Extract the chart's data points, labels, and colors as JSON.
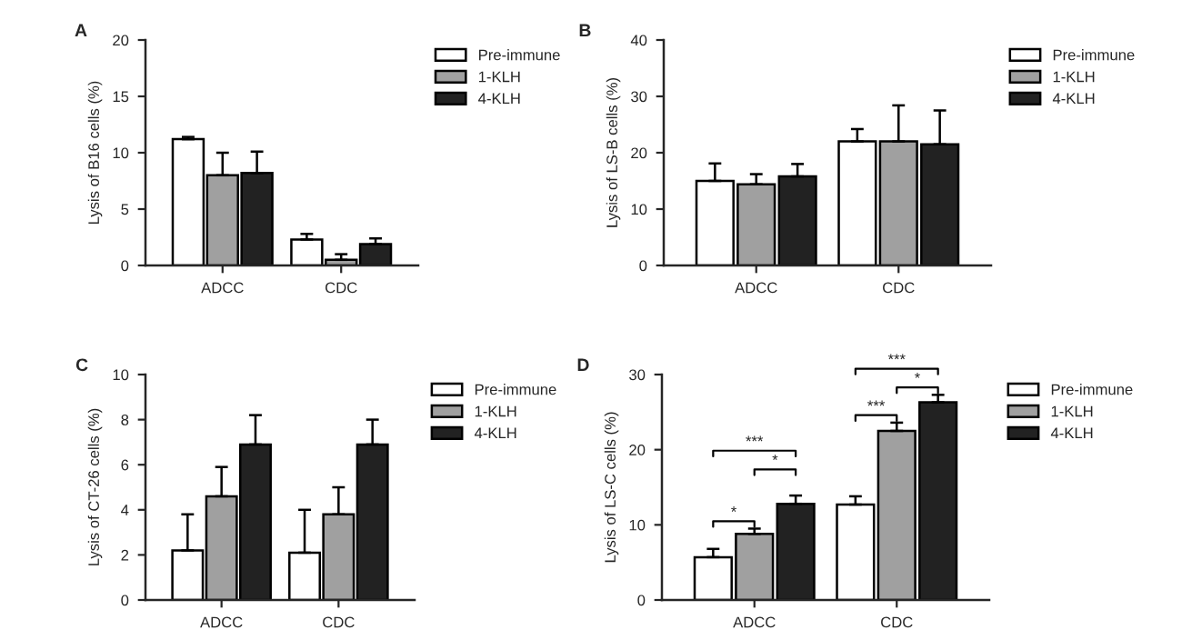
{
  "chart_data": [
    {
      "type": "bar",
      "ylabel": "Lysis of B16 cells (%)",
      "categories": [
        "ADCC",
        "CDC"
      ],
      "ylim": [
        0,
        20
      ],
      "yticks": [
        0,
        5,
        10,
        15,
        20
      ],
      "legend": "right",
      "grid": false,
      "annotations": [
        "A"
      ],
      "series": [
        {
          "name": "Pre-immune",
          "color": "#ffffff",
          "values": [
            11.2,
            2.3
          ],
          "errors": [
            [
              11.2,
              11.4
            ],
            [
              2.3,
              2.8
            ]
          ]
        },
        {
          "name": "1-KLH",
          "color": "#a0a0a0",
          "values": [
            8.0,
            0.5
          ],
          "errors": [
            [
              8.0,
              10.0
            ],
            [
              0.5,
              1.0
            ]
          ]
        },
        {
          "name": "4-KLH",
          "color": "#222222",
          "values": [
            8.2,
            1.9
          ],
          "errors": [
            [
              8.2,
              10.1
            ],
            [
              1.9,
              2.4
            ]
          ]
        }
      ]
    },
    {
      "type": "bar",
      "ylabel": "Lysis of LS-B cells (%)",
      "categories": [
        "ADCC",
        "CDC"
      ],
      "ylim": [
        0,
        40
      ],
      "yticks": [
        0,
        10,
        20,
        30,
        40
      ],
      "legend": "right",
      "grid": false,
      "annotations": [
        "B"
      ],
      "series": [
        {
          "name": "Pre-immune",
          "color": "#ffffff",
          "values": [
            15.0,
            22.0
          ],
          "errors": [
            [
              15.0,
              18.1
            ],
            [
              22.0,
              24.2
            ]
          ]
        },
        {
          "name": "1-KLH",
          "color": "#a0a0a0",
          "values": [
            14.4,
            22.0
          ],
          "errors": [
            [
              14.4,
              16.2
            ],
            [
              22.0,
              28.4
            ]
          ]
        },
        {
          "name": "4-KLH",
          "color": "#222222",
          "values": [
            15.8,
            21.5
          ],
          "errors": [
            [
              15.8,
              18.0
            ],
            [
              21.5,
              27.5
            ]
          ]
        }
      ]
    },
    {
      "type": "bar",
      "ylabel": "Lysis of CT-26 cells (%)",
      "categories": [
        "ADCC",
        "CDC"
      ],
      "ylim": [
        0,
        10
      ],
      "yticks": [
        0,
        2,
        4,
        6,
        8,
        10
      ],
      "legend": "right",
      "grid": false,
      "annotations": [
        "C"
      ],
      "series": [
        {
          "name": "Pre-immune",
          "color": "#ffffff",
          "values": [
            2.2,
            2.1
          ],
          "errors": [
            [
              2.2,
              3.8
            ],
            [
              2.1,
              4.0
            ]
          ]
        },
        {
          "name": "1-KLH",
          "color": "#a0a0a0",
          "values": [
            4.6,
            3.8
          ],
          "errors": [
            [
              4.6,
              5.9
            ],
            [
              3.8,
              5.0
            ]
          ]
        },
        {
          "name": "4-KLH",
          "color": "#222222",
          "values": [
            6.9,
            6.9
          ],
          "errors": [
            [
              6.9,
              8.2
            ],
            [
              6.9,
              8.0
            ]
          ]
        }
      ]
    },
    {
      "type": "bar",
      "ylabel": "Lysis of LS-C cells (%)",
      "categories": [
        "ADCC",
        "CDC"
      ],
      "ylim": [
        0,
        30
      ],
      "yticks": [
        0,
        10,
        20,
        30
      ],
      "legend": "right",
      "grid": false,
      "annotations": [
        "D",
        "*",
        "*",
        "***",
        "***",
        "*",
        "***"
      ],
      "series": [
        {
          "name": "Pre-immune",
          "color": "#ffffff",
          "values": [
            5.7,
            12.7
          ],
          "errors": [
            [
              5.7,
              6.8
            ],
            [
              12.7,
              13.8
            ]
          ]
        },
        {
          "name": "1-KLH",
          "color": "#a0a0a0",
          "values": [
            8.8,
            22.5
          ],
          "errors": [
            [
              8.8,
              9.5
            ],
            [
              22.5,
              23.6
            ]
          ]
        },
        {
          "name": "4-KLH",
          "color": "#222222",
          "values": [
            12.8,
            26.3
          ],
          "errors": [
            [
              12.8,
              13.9
            ],
            [
              26.3,
              27.3
            ]
          ]
        }
      ]
    }
  ]
}
